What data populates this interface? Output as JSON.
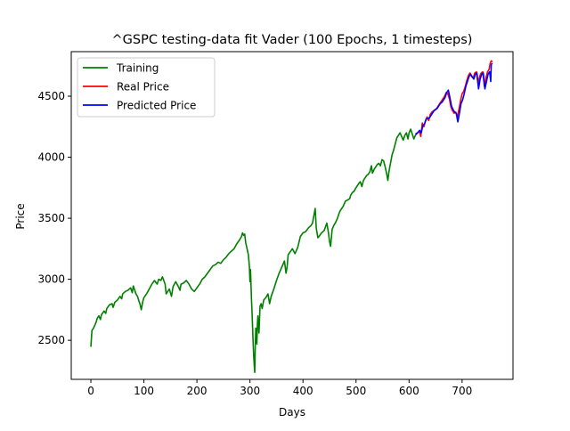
{
  "chart_data": {
    "type": "line",
    "title": "^GSPC testing-data fit Vader (100 Epochs, 1 timesteps)",
    "xlabel": "Days",
    "ylabel": "Price",
    "xlim": [
      -37,
      796
    ],
    "ylim": [
      2180,
      4865
    ],
    "xticks": [
      0,
      100,
      200,
      300,
      400,
      500,
      600,
      700
    ],
    "yticks": [
      2500,
      3000,
      3500,
      4000,
      4500
    ],
    "grid": false,
    "legend_position": "upper left",
    "series": [
      {
        "name": "Training",
        "color": "#008000",
        "points": [
          [
            0,
            2447
          ],
          [
            2,
            2580
          ],
          [
            5,
            2600
          ],
          [
            8,
            2628
          ],
          [
            10,
            2650
          ],
          [
            12,
            2680
          ],
          [
            15,
            2700
          ],
          [
            18,
            2670
          ],
          [
            20,
            2710
          ],
          [
            25,
            2740
          ],
          [
            28,
            2720
          ],
          [
            30,
            2760
          ],
          [
            35,
            2790
          ],
          [
            40,
            2800
          ],
          [
            42,
            2770
          ],
          [
            45,
            2810
          ],
          [
            50,
            2830
          ],
          [
            55,
            2860
          ],
          [
            58,
            2840
          ],
          [
            60,
            2880
          ],
          [
            65,
            2900
          ],
          [
            70,
            2910
          ],
          [
            75,
            2930
          ],
          [
            78,
            2890
          ],
          [
            80,
            2945
          ],
          [
            85,
            2880
          ],
          [
            88,
            2860
          ],
          [
            90,
            2830
          ],
          [
            93,
            2790
          ],
          [
            95,
            2750
          ],
          [
            98,
            2820
          ],
          [
            100,
            2850
          ],
          [
            105,
            2880
          ],
          [
            110,
            2920
          ],
          [
            115,
            2960
          ],
          [
            120,
            2990
          ],
          [
            125,
            2960
          ],
          [
            128,
            3000
          ],
          [
            132,
            2990
          ],
          [
            135,
            3020
          ],
          [
            140,
            2960
          ],
          [
            142,
            2880
          ],
          [
            145,
            2900
          ],
          [
            148,
            2920
          ],
          [
            152,
            2860
          ],
          [
            155,
            2940
          ],
          [
            160,
            2980
          ],
          [
            165,
            2940
          ],
          [
            168,
            2910
          ],
          [
            170,
            2960
          ],
          [
            175,
            2970
          ],
          [
            180,
            2990
          ],
          [
            185,
            2960
          ],
          [
            190,
            2920
          ],
          [
            195,
            2900
          ],
          [
            200,
            2930
          ],
          [
            205,
            2960
          ],
          [
            210,
            3000
          ],
          [
            215,
            3020
          ],
          [
            220,
            3050
          ],
          [
            225,
            3080
          ],
          [
            230,
            3110
          ],
          [
            235,
            3120
          ],
          [
            240,
            3140
          ],
          [
            245,
            3130
          ],
          [
            250,
            3160
          ],
          [
            255,
            3180
          ],
          [
            260,
            3210
          ],
          [
            265,
            3230
          ],
          [
            270,
            3250
          ],
          [
            275,
            3290
          ],
          [
            280,
            3320
          ],
          [
            284,
            3350
          ],
          [
            286,
            3380
          ],
          [
            288,
            3360
          ],
          [
            290,
            3370
          ],
          [
            292,
            3300
          ],
          [
            295,
            3240
          ],
          [
            297,
            3200
          ],
          [
            299,
            3100
          ],
          [
            300,
            2980
          ],
          [
            301,
            3080
          ],
          [
            302,
            2950
          ],
          [
            303,
            2820
          ],
          [
            304,
            2720
          ],
          [
            305,
            2600
          ],
          [
            306,
            2480
          ],
          [
            307,
            2380
          ],
          [
            308,
            2300
          ],
          [
            309,
            2237
          ],
          [
            310,
            2450
          ],
          [
            311,
            2600
          ],
          [
            312,
            2520
          ],
          [
            313,
            2470
          ],
          [
            314,
            2630
          ],
          [
            315,
            2700
          ],
          [
            317,
            2560
          ],
          [
            319,
            2780
          ],
          [
            321,
            2800
          ],
          [
            323,
            2760
          ],
          [
            326,
            2830
          ],
          [
            330,
            2850
          ],
          [
            334,
            2880
          ],
          [
            337,
            2800
          ],
          [
            340,
            2860
          ],
          [
            345,
            2920
          ],
          [
            350,
            2990
          ],
          [
            355,
            3050
          ],
          [
            360,
            3100
          ],
          [
            365,
            3150
          ],
          [
            368,
            3050
          ],
          [
            370,
            3100
          ],
          [
            372,
            3200
          ],
          [
            375,
            3220
          ],
          [
            380,
            3250
          ],
          [
            385,
            3210
          ],
          [
            390,
            3260
          ],
          [
            395,
            3350
          ],
          [
            400,
            3380
          ],
          [
            405,
            3390
          ],
          [
            410,
            3420
          ],
          [
            415,
            3440
          ],
          [
            418,
            3460
          ],
          [
            420,
            3510
          ],
          [
            423,
            3580
          ],
          [
            425,
            3420
          ],
          [
            428,
            3340
          ],
          [
            430,
            3350
          ],
          [
            435,
            3380
          ],
          [
            440,
            3400
          ],
          [
            445,
            3460
          ],
          [
            448,
            3380
          ],
          [
            450,
            3310
          ],
          [
            452,
            3270
          ],
          [
            455,
            3410
          ],
          [
            458,
            3440
          ],
          [
            462,
            3470
          ],
          [
            465,
            3500
          ],
          [
            468,
            3540
          ],
          [
            470,
            3560
          ],
          [
            473,
            3580
          ],
          [
            476,
            3600
          ],
          [
            480,
            3640
          ],
          [
            484,
            3650
          ],
          [
            488,
            3660
          ],
          [
            490,
            3690
          ],
          [
            493,
            3710
          ],
          [
            496,
            3720
          ],
          [
            500,
            3750
          ],
          [
            503,
            3770
          ],
          [
            506,
            3790
          ],
          [
            508,
            3800
          ],
          [
            511,
            3760
          ],
          [
            514,
            3810
          ],
          [
            517,
            3830
          ],
          [
            520,
            3850
          ],
          [
            523,
            3860
          ],
          [
            526,
            3880
          ],
          [
            529,
            3930
          ],
          [
            531,
            3870
          ],
          [
            534,
            3900
          ],
          [
            537,
            3920
          ],
          [
            540,
            3940
          ],
          [
            543,
            3950
          ],
          [
            546,
            3930
          ],
          [
            549,
            3980
          ],
          [
            552,
            3970
          ],
          [
            555,
            3920
          ],
          [
            558,
            3860
          ],
          [
            560,
            3810
          ],
          [
            562,
            3880
          ],
          [
            565,
            3950
          ],
          [
            568,
            4020
          ],
          [
            571,
            4060
          ],
          [
            574,
            4110
          ],
          [
            577,
            4160
          ],
          [
            580,
            4180
          ],
          [
            583,
            4200
          ],
          [
            586,
            4170
          ],
          [
            589,
            4140
          ],
          [
            592,
            4180
          ],
          [
            595,
            4200
          ],
          [
            598,
            4150
          ],
          [
            600,
            4200
          ],
          [
            603,
            4230
          ],
          [
            606,
            4190
          ],
          [
            609,
            4150
          ],
          [
            612,
            4180
          ],
          [
            615,
            4200
          ]
        ]
      },
      {
        "name": "Real Price",
        "color": "#ff0000",
        "points": [
          [
            612,
            4180
          ],
          [
            616,
            4200
          ],
          [
            620,
            4210
          ],
          [
            622,
            4170
          ],
          [
            625,
            4280
          ],
          [
            628,
            4250
          ],
          [
            631,
            4300
          ],
          [
            634,
            4330
          ],
          [
            637,
            4300
          ],
          [
            640,
            4350
          ],
          [
            643,
            4370
          ],
          [
            646,
            4380
          ],
          [
            649,
            4390
          ],
          [
            652,
            4400
          ],
          [
            655,
            4420
          ],
          [
            658,
            4440
          ],
          [
            661,
            4460
          ],
          [
            664,
            4480
          ],
          [
            667,
            4500
          ],
          [
            670,
            4530
          ],
          [
            673,
            4520
          ],
          [
            676,
            4480
          ],
          [
            679,
            4410
          ],
          [
            682,
            4380
          ],
          [
            685,
            4360
          ],
          [
            688,
            4370
          ],
          [
            691,
            4330
          ],
          [
            694,
            4390
          ],
          [
            697,
            4460
          ],
          [
            700,
            4520
          ],
          [
            703,
            4540
          ],
          [
            706,
            4580
          ],
          [
            709,
            4630
          ],
          [
            712,
            4670
          ],
          [
            715,
            4690
          ],
          [
            718,
            4660
          ],
          [
            721,
            4650
          ],
          [
            724,
            4690
          ],
          [
            727,
            4700
          ],
          [
            730,
            4600
          ],
          [
            733,
            4660
          ],
          [
            736,
            4690
          ],
          [
            739,
            4700
          ],
          [
            742,
            4580
          ],
          [
            745,
            4650
          ],
          [
            748,
            4700
          ],
          [
            751,
            4720
          ],
          [
            753,
            4770
          ],
          [
            755,
            4790
          ],
          [
            757,
            4780
          ]
        ]
      },
      {
        "name": "Predicted Price",
        "color": "#0000ff",
        "points": [
          [
            612,
            4190
          ],
          [
            616,
            4200
          ],
          [
            620,
            4220
          ],
          [
            623,
            4200
          ],
          [
            626,
            4260
          ],
          [
            629,
            4270
          ],
          [
            632,
            4310
          ],
          [
            635,
            4320
          ],
          [
            638,
            4320
          ],
          [
            641,
            4340
          ],
          [
            644,
            4360
          ],
          [
            647,
            4380
          ],
          [
            650,
            4390
          ],
          [
            653,
            4400
          ],
          [
            656,
            4420
          ],
          [
            659,
            4440
          ],
          [
            662,
            4450
          ],
          [
            665,
            4470
          ],
          [
            668,
            4490
          ],
          [
            671,
            4530
          ],
          [
            674,
            4550
          ],
          [
            677,
            4490
          ],
          [
            680,
            4420
          ],
          [
            683,
            4390
          ],
          [
            686,
            4370
          ],
          [
            689,
            4360
          ],
          [
            692,
            4290
          ],
          [
            695,
            4360
          ],
          [
            698,
            4440
          ],
          [
            701,
            4470
          ],
          [
            704,
            4520
          ],
          [
            707,
            4580
          ],
          [
            710,
            4620
          ],
          [
            713,
            4660
          ],
          [
            716,
            4680
          ],
          [
            719,
            4660
          ],
          [
            722,
            4640
          ],
          [
            725,
            4680
          ],
          [
            728,
            4690
          ],
          [
            731,
            4560
          ],
          [
            734,
            4640
          ],
          [
            737,
            4680
          ],
          [
            740,
            4690
          ],
          [
            743,
            4560
          ],
          [
            746,
            4620
          ],
          [
            749,
            4680
          ],
          [
            752,
            4700
          ],
          [
            754,
            4620
          ],
          [
            755,
            4760
          ],
          [
            757,
            4770
          ]
        ]
      }
    ]
  }
}
